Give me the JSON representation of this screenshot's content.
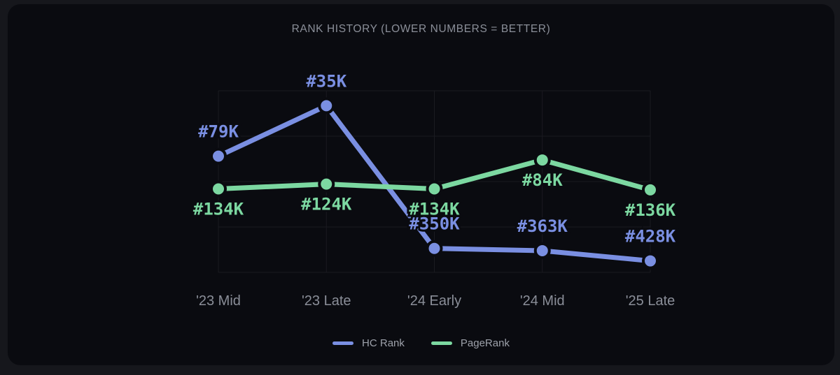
{
  "page": {
    "background_color": "#16171c",
    "card_background_color": "#0a0b10",
    "grid_color": "#1a1b21",
    "title_color": "#8b8f99",
    "axis_label_color": "#8a8e98",
    "legend_text_color": "#9da1aa"
  },
  "chart_data": {
    "type": "line",
    "title": "RANK HISTORY (LOWER NUMBERS = BETTER)",
    "categories": [
      "'23 Mid",
      "'23 Late",
      "'24 Early",
      "'24 Mid",
      "'25 Late"
    ],
    "series": [
      {
        "name": "HC Rank",
        "color": "#7a8fe2",
        "values_k": [
          79,
          35,
          350,
          363,
          428
        ],
        "labels": [
          "#79K",
          "#35K",
          "#350K",
          "#363K",
          "#428K"
        ],
        "label_side": "above"
      },
      {
        "name": "PageRank",
        "color": "#7cd8a1",
        "values_k": [
          134,
          124,
          134,
          84,
          136
        ],
        "labels": [
          "#134K",
          "#124K",
          "#134K",
          "#84K",
          "#136K"
        ],
        "label_side": "below"
      }
    ],
    "y_scale": "log",
    "y_axis_inverted": true,
    "y_domain_k": [
      27.5,
      515
    ],
    "value_prefix": "#",
    "value_suffix": "K",
    "grid": true,
    "legend_position": "bottom"
  }
}
